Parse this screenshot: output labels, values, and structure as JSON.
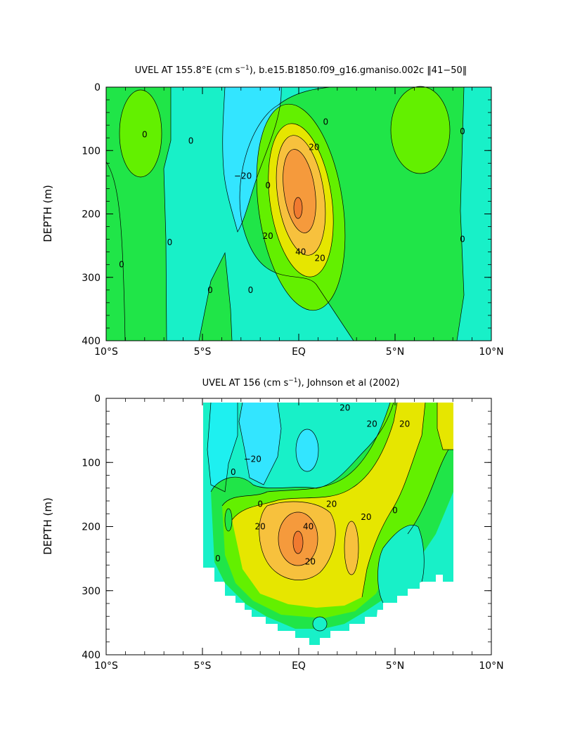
{
  "chart_data": [
    {
      "type": "heatmap",
      "title": "UVEL AT 155.8°E (cm s",
      "title_sup": "−1",
      "title_tail": "), b.e15.B1850.f09_g16.gmaniso.002c ‖41−50‖",
      "ylabel": "DEPTH (m)",
      "xlabel": "",
      "x_range": [
        -10,
        10
      ],
      "y_range": [
        0,
        400
      ],
      "y_inverted": true,
      "x_ticks": [
        {
          "value": -10,
          "label": "10°S"
        },
        {
          "value": -5,
          "label": "5°S"
        },
        {
          "value": 0,
          "label": "EQ"
        },
        {
          "value": 5,
          "label": "5°N"
        },
        {
          "value": 10,
          "label": "10°N"
        }
      ],
      "y_ticks": [
        {
          "value": 0,
          "label": "0"
        },
        {
          "value": 100,
          "label": "100"
        },
        {
          "value": 200,
          "label": "200"
        },
        {
          "value": 300,
          "label": "300"
        },
        {
          "value": 400,
          "label": "400"
        }
      ],
      "contour_interval": 10,
      "data_extent": {
        "lat": [
          -10,
          10
        ],
        "depth": [
          5,
          400
        ]
      },
      "contour_labels": [
        {
          "lat": -8.0,
          "depth": 75,
          "text": "0"
        },
        {
          "lat": -5.6,
          "depth": 85,
          "text": "0"
        },
        {
          "lat": -6.7,
          "depth": 245,
          "text": "0"
        },
        {
          "lat": -9.2,
          "depth": 280,
          "text": "0"
        },
        {
          "lat": -4.6,
          "depth": 320,
          "text": "0"
        },
        {
          "lat": -2.5,
          "depth": 320,
          "text": "0"
        },
        {
          "lat": -2.9,
          "depth": 140,
          "text": "−20"
        },
        {
          "lat": -1.6,
          "depth": 155,
          "text": "0"
        },
        {
          "lat": 1.4,
          "depth": 55,
          "text": "0"
        },
        {
          "lat": 0.8,
          "depth": 95,
          "text": "20"
        },
        {
          "lat": -1.6,
          "depth": 235,
          "text": "20"
        },
        {
          "lat": 0.1,
          "depth": 260,
          "text": "40"
        },
        {
          "lat": 1.1,
          "depth": 270,
          "text": "20"
        },
        {
          "lat": 8.5,
          "depth": 70,
          "text": "0"
        },
        {
          "lat": 8.5,
          "depth": 240,
          "text": "0"
        }
      ]
    },
    {
      "type": "heatmap",
      "title": "UVEL AT 156 (cm s",
      "title_sup": "−1",
      "title_tail": "), Johnson et al (2002)",
      "ylabel": "DEPTH (m)",
      "xlabel": "",
      "x_range": [
        -10,
        10
      ],
      "y_range": [
        0,
        400
      ],
      "y_inverted": true,
      "x_ticks": [
        {
          "value": -10,
          "label": "10°S"
        },
        {
          "value": -5,
          "label": "5°S"
        },
        {
          "value": 0,
          "label": "EQ"
        },
        {
          "value": 5,
          "label": "5°N"
        },
        {
          "value": 10,
          "label": "10°N"
        }
      ],
      "y_ticks": [
        {
          "value": 0,
          "label": "0"
        },
        {
          "value": 100,
          "label": "100"
        },
        {
          "value": 200,
          "label": "200"
        },
        {
          "value": 300,
          "label": "300"
        },
        {
          "value": 400,
          "label": "400"
        }
      ],
      "contour_interval": 10,
      "data_extent": {
        "lat": [
          -5,
          8
        ],
        "depth": [
          5,
          355
        ]
      },
      "contour_labels": [
        {
          "lat": -3.4,
          "depth": 115,
          "text": "0"
        },
        {
          "lat": -2.4,
          "depth": 95,
          "text": "−20"
        },
        {
          "lat": -2.0,
          "depth": 165,
          "text": "0"
        },
        {
          "lat": 2.4,
          "depth": 15,
          "text": "20"
        },
        {
          "lat": 3.8,
          "depth": 40,
          "text": "20"
        },
        {
          "lat": 5.5,
          "depth": 40,
          "text": "20"
        },
        {
          "lat": 1.7,
          "depth": 165,
          "text": "20"
        },
        {
          "lat": -2.0,
          "depth": 200,
          "text": "20"
        },
        {
          "lat": 0.5,
          "depth": 200,
          "text": "40"
        },
        {
          "lat": 0.6,
          "depth": 255,
          "text": "20"
        },
        {
          "lat": 3.5,
          "depth": 185,
          "text": "20"
        },
        {
          "lat": -4.2,
          "depth": 250,
          "text": "0"
        },
        {
          "lat": 5.0,
          "depth": 175,
          "text": "0"
        }
      ]
    }
  ],
  "colors": {
    "lt_neg20": "#1ef0f0",
    "neg20_neg10": "#33e5ff",
    "neg10_0": "#18f0c8",
    "0_10": "#20e548",
    "10_20": "#63f000",
    "20_30": "#e6e600",
    "30_40": "#f7c13d",
    "40_50": "#f59a3c",
    "gt_50": "#f07a30",
    "line": "#000000"
  }
}
